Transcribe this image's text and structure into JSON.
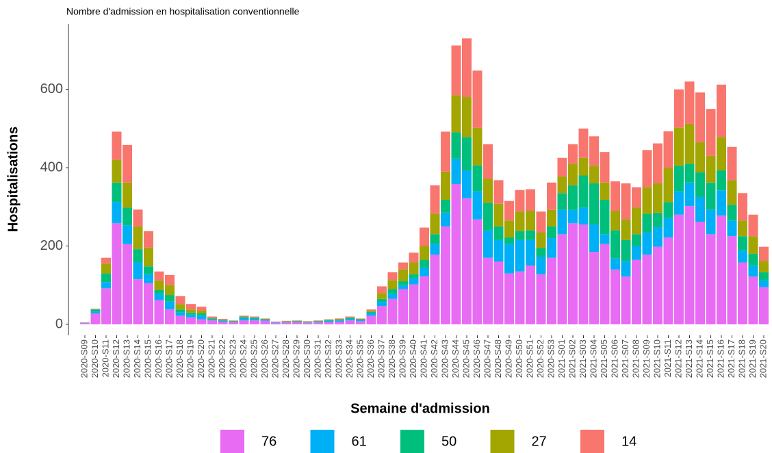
{
  "chart_data": {
    "type": "stacked_bar",
    "title": "Nombre d'admission en hospitalisation conventionnelle",
    "x_label": "Semaine d'admission",
    "y_label": "Hospitalisations",
    "categories": [
      "2020-S09",
      "2020-S10",
      "2020-S11",
      "2020-S12",
      "2020-S13",
      "2020-S14",
      "2020-S15",
      "2020-S16",
      "2020-S17",
      "2020-S18",
      "2020-S19",
      "2020-S20",
      "2020-S21",
      "2020-S22",
      "2020-S23",
      "2020-S24",
      "2020-S25",
      "2020-S26",
      "2020-S27",
      "2020-S28",
      "2020-S29",
      "2020-S30",
      "2020-S31",
      "2020-S32",
      "2020-S33",
      "2020-S34",
      "2020-S35",
      "2020-S36",
      "2020-S37",
      "2020-S38",
      "2020-S39",
      "2020-S40",
      "2020-S41",
      "2020-S42",
      "2020-S43",
      "2020-S44",
      "2020-S45",
      "2020-S46",
      "2020-S47",
      "2020-S48",
      "2020-S49",
      "2020-S50",
      "2020-S51",
      "2020-S52",
      "2020-S53",
      "2021-S01",
      "2021-S02",
      "2021-S03",
      "2021-S04",
      "2021-S05",
      "2021-S06",
      "2021-S07",
      "2021-S08",
      "2021-S09",
      "2021-S10",
      "2021-S11",
      "2021-S12",
      "2021-S13",
      "2021-S14",
      "2021-S15",
      "2021-S16",
      "2021-S17",
      "2021-S18",
      "2021-S19",
      "2021-S20"
    ],
    "series": [
      {
        "name": "76",
        "color": "#E76BF3",
        "values": [
          3,
          28,
          92,
          258,
          205,
          115,
          105,
          62,
          38,
          22,
          18,
          13,
          10,
          7,
          5,
          10,
          10,
          9,
          4,
          5,
          5,
          4,
          5,
          6,
          7,
          10,
          8,
          22,
          47,
          65,
          90,
          102,
          123,
          178,
          250,
          358,
          322,
          268,
          170,
          160,
          130,
          135,
          150,
          128,
          170,
          230,
          258,
          255,
          185,
          205,
          140,
          122,
          165,
          178,
          198,
          222,
          280,
          302,
          262,
          230,
          278,
          225,
          158,
          122,
          95
        ]
      },
      {
        "name": "61",
        "color": "#00B0F6",
        "values": [
          1,
          5,
          16,
          54,
          48,
          43,
          23,
          16,
          20,
          8,
          7,
          9,
          3,
          2,
          2,
          6,
          4,
          2,
          1,
          1,
          2,
          1,
          2,
          3,
          3,
          4,
          3,
          6,
          10,
          13,
          10,
          16,
          22,
          27,
          35,
          65,
          71,
          72,
          70,
          55,
          75,
          80,
          65,
          44,
          50,
          62,
          34,
          43,
          70,
          25,
          28,
          40,
          35,
          57,
          50,
          50,
          60,
          60,
          63,
          63,
          64,
          40,
          30,
          28,
          17
        ]
      },
      {
        "name": "50",
        "color": "#00BF7D",
        "values": [
          0,
          5,
          22,
          50,
          45,
          34,
          20,
          10,
          17,
          8,
          5,
          6,
          2,
          2,
          1,
          3,
          3,
          2,
          1,
          1,
          1,
          1,
          1,
          2,
          2,
          3,
          2,
          4,
          8,
          12,
          10,
          10,
          20,
          25,
          33,
          67,
          85,
          66,
          70,
          35,
          17,
          23,
          25,
          23,
          30,
          43,
          63,
          82,
          105,
          88,
          72,
          53,
          30,
          47,
          37,
          40,
          65,
          48,
          63,
          69,
          51,
          40,
          37,
          30,
          21
        ]
      },
      {
        "name": "27",
        "color": "#A3A500",
        "values": [
          0,
          1,
          25,
          58,
          64,
          58,
          48,
          24,
          25,
          14,
          8,
          7,
          2,
          1,
          1,
          1,
          1,
          1,
          0,
          1,
          1,
          1,
          1,
          1,
          1,
          1,
          1,
          3,
          15,
          23,
          30,
          30,
          35,
          52,
          72,
          95,
          102,
          96,
          62,
          58,
          43,
          50,
          50,
          40,
          42,
          43,
          55,
          45,
          45,
          44,
          50,
          53,
          68,
          68,
          75,
          88,
          97,
          102,
          77,
          68,
          85,
          63,
          40,
          45,
          29
        ]
      },
      {
        "name": "14",
        "color": "#F8766D",
        "values": [
          1,
          1,
          15,
          72,
          96,
          43,
          42,
          23,
          26,
          20,
          14,
          10,
          3,
          2,
          1,
          2,
          2,
          1,
          1,
          1,
          1,
          1,
          1,
          1,
          2,
          2,
          1,
          3,
          17,
          20,
          18,
          25,
          47,
          73,
          102,
          127,
          150,
          146,
          88,
          60,
          50,
          55,
          55,
          53,
          70,
          47,
          50,
          75,
          75,
          78,
          75,
          92,
          52,
          95,
          102,
          93,
          98,
          108,
          127,
          120,
          134,
          85,
          70,
          55,
          36
        ]
      }
    ],
    "ylim": [
      -28,
      767
    ],
    "yticks": [
      0,
      200,
      400,
      600
    ],
    "grid": false
  }
}
